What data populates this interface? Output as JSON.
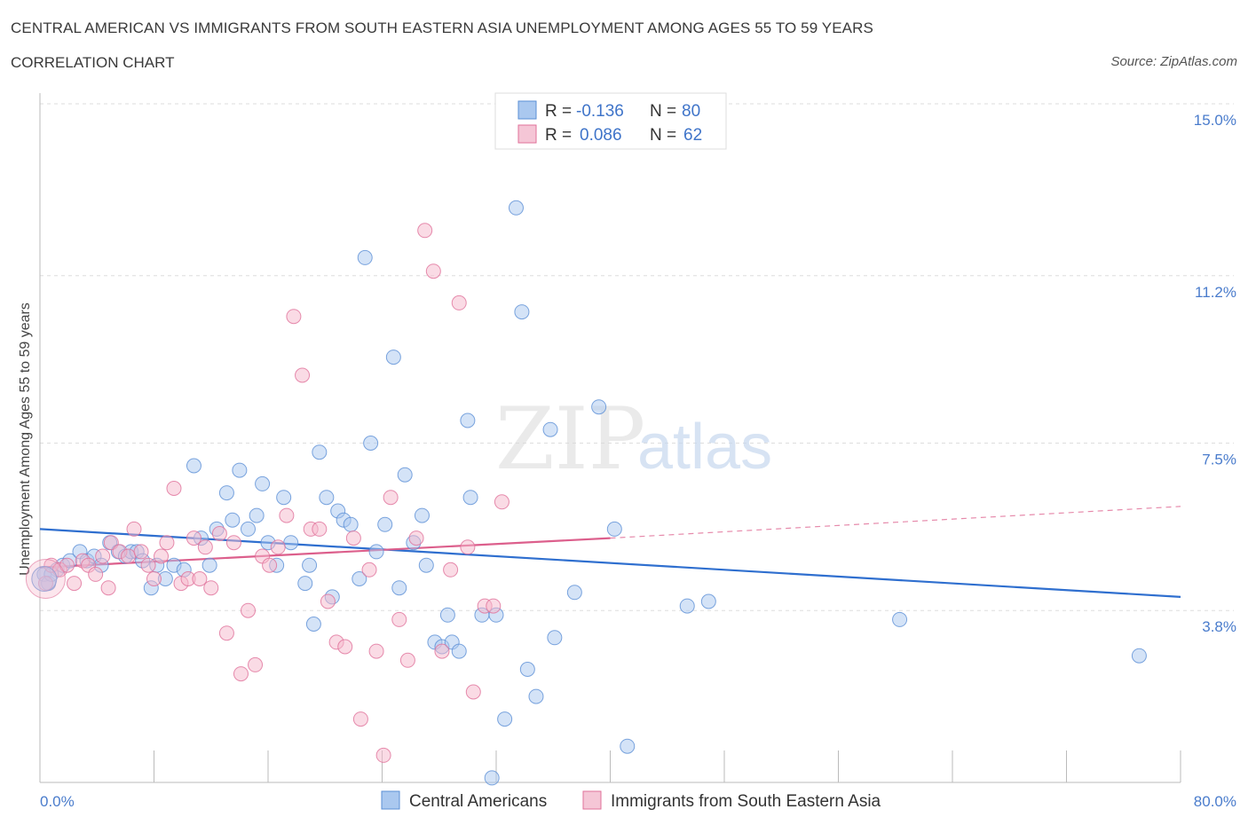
{
  "title": "CENTRAL AMERICAN VS IMMIGRANTS FROM SOUTH EASTERN ASIA UNEMPLOYMENT AMONG AGES 55 TO 59 YEARS",
  "subtitle": "CORRELATION CHART",
  "source": "Source: ZipAtlas.com",
  "watermark": {
    "zip": "ZIP",
    "atlas": "atlas"
  },
  "colors": {
    "blue": "#5b8fd6",
    "blue_fill": "#aac8ef",
    "pink": "#e0719a",
    "pink_fill": "#f5b8cc",
    "tick_label": "#4a7ccc"
  },
  "legend": {
    "row1": {
      "r_label": "R = ",
      "r_value": "-0.136",
      "n_label": "N = ",
      "n_value": "80"
    },
    "row2": {
      "r_label": "R = ",
      "r_value": "0.086",
      "n_label": "N = ",
      "n_value": "62"
    }
  },
  "bottom_legend": {
    "series1": "Central Americans",
    "series2": "Immigrants from South Eastern Asia"
  },
  "chart_data": {
    "type": "scatter",
    "title": "CENTRAL AMERICAN VS IMMIGRANTS FROM SOUTH EASTERN ASIA UNEMPLOYMENT AMONG AGES 55 TO 59 YEARS",
    "xlabel": "",
    "ylabel": "Unemployment Among Ages 55 to 59 years",
    "xlim": [
      0,
      80
    ],
    "ylim": [
      0,
      15
    ],
    "x_tick_labels": [
      "0.0%",
      "80.0%"
    ],
    "y_ticks": [
      3.8,
      7.5,
      11.2,
      15.0
    ],
    "y_tick_labels": [
      "3.8%",
      "7.5%",
      "11.2%",
      "15.0%"
    ],
    "grid": "horizontal dashed",
    "legend_position": "top-center",
    "series": [
      {
        "name": "Central Americans",
        "color": "#5b8fd6",
        "trend": {
          "x": [
            0,
            80
          ],
          "y": [
            5.6,
            4.1
          ]
        },
        "points": [
          [
            0.3,
            4.6
          ],
          [
            0.6,
            4.4
          ],
          [
            1.2,
            4.7
          ],
          [
            1.6,
            4.8
          ],
          [
            2.1,
            4.9
          ],
          [
            2.8,
            5.1
          ],
          [
            3.3,
            4.9
          ],
          [
            3.8,
            5.0
          ],
          [
            4.3,
            4.8
          ],
          [
            4.9,
            5.3
          ],
          [
            5.5,
            5.1
          ],
          [
            6.0,
            5.0
          ],
          [
            6.4,
            5.1
          ],
          [
            6.8,
            5.1
          ],
          [
            7.2,
            4.9
          ],
          [
            7.8,
            4.3
          ],
          [
            8.2,
            4.8
          ],
          [
            8.8,
            4.5
          ],
          [
            9.4,
            4.8
          ],
          [
            10.1,
            4.7
          ],
          [
            10.8,
            7.0
          ],
          [
            11.3,
            5.4
          ],
          [
            11.9,
            4.8
          ],
          [
            12.4,
            5.6
          ],
          [
            13.1,
            6.4
          ],
          [
            13.5,
            5.8
          ],
          [
            14.0,
            6.9
          ],
          [
            14.6,
            5.6
          ],
          [
            15.2,
            5.9
          ],
          [
            15.6,
            6.6
          ],
          [
            16.0,
            5.3
          ],
          [
            16.6,
            4.8
          ],
          [
            17.1,
            6.3
          ],
          [
            17.6,
            5.3
          ],
          [
            18.6,
            4.4
          ],
          [
            18.9,
            4.8
          ],
          [
            19.2,
            3.5
          ],
          [
            19.6,
            7.3
          ],
          [
            20.1,
            6.3
          ],
          [
            20.5,
            4.1
          ],
          [
            20.9,
            6.0
          ],
          [
            21.3,
            5.8
          ],
          [
            21.8,
            5.7
          ],
          [
            22.4,
            4.5
          ],
          [
            22.8,
            11.6
          ],
          [
            23.2,
            7.5
          ],
          [
            23.6,
            5.1
          ],
          [
            24.2,
            5.7
          ],
          [
            24.8,
            9.4
          ],
          [
            25.2,
            4.3
          ],
          [
            25.6,
            6.8
          ],
          [
            26.2,
            5.3
          ],
          [
            26.8,
            5.9
          ],
          [
            27.1,
            4.8
          ],
          [
            27.7,
            3.1
          ],
          [
            28.2,
            3.0
          ],
          [
            28.6,
            3.7
          ],
          [
            28.9,
            3.1
          ],
          [
            29.4,
            2.9
          ],
          [
            30.0,
            8.0
          ],
          [
            30.2,
            6.3
          ],
          [
            31.0,
            3.7
          ],
          [
            31.7,
            0.1
          ],
          [
            32.0,
            3.7
          ],
          [
            32.6,
            1.4
          ],
          [
            33.4,
            12.7
          ],
          [
            33.8,
            10.4
          ],
          [
            34.2,
            2.5
          ],
          [
            34.8,
            1.9
          ],
          [
            35.8,
            7.8
          ],
          [
            36.1,
            3.2
          ],
          [
            37.5,
            4.2
          ],
          [
            39.2,
            8.3
          ],
          [
            40.3,
            5.6
          ],
          [
            41.2,
            0.8
          ],
          [
            45.4,
            3.9
          ],
          [
            46.9,
            4.0
          ],
          [
            60.3,
            3.6
          ],
          [
            77.1,
            2.8
          ],
          [
            0.8,
            4.6
          ]
        ]
      },
      {
        "name": "Immigrants from South Eastern Asia",
        "color": "#e0719a",
        "trend": {
          "x": [
            0,
            40
          ],
          "y": [
            4.75,
            5.4
          ],
          "dashed_extension": {
            "x": [
              40,
              80
            ],
            "y": [
              5.4,
              6.1
            ]
          }
        },
        "points": [
          [
            0.4,
            4.4
          ],
          [
            0.8,
            4.8
          ],
          [
            1.4,
            4.7
          ],
          [
            1.9,
            4.8
          ],
          [
            2.4,
            4.4
          ],
          [
            3.0,
            4.9
          ],
          [
            3.4,
            4.8
          ],
          [
            3.9,
            4.6
          ],
          [
            4.4,
            5.0
          ],
          [
            4.8,
            4.3
          ],
          [
            5.0,
            5.3
          ],
          [
            5.6,
            5.1
          ],
          [
            6.2,
            5.0
          ],
          [
            6.6,
            5.6
          ],
          [
            7.1,
            5.1
          ],
          [
            7.6,
            4.8
          ],
          [
            8.0,
            4.5
          ],
          [
            8.5,
            5.0
          ],
          [
            8.9,
            5.3
          ],
          [
            9.4,
            6.5
          ],
          [
            9.9,
            4.4
          ],
          [
            10.4,
            4.5
          ],
          [
            10.8,
            5.4
          ],
          [
            11.2,
            4.5
          ],
          [
            11.6,
            5.2
          ],
          [
            12.0,
            4.3
          ],
          [
            12.6,
            5.5
          ],
          [
            13.1,
            3.3
          ],
          [
            13.6,
            5.3
          ],
          [
            14.1,
            2.4
          ],
          [
            14.6,
            3.8
          ],
          [
            15.1,
            2.6
          ],
          [
            15.6,
            5.0
          ],
          [
            16.1,
            4.8
          ],
          [
            16.7,
            5.2
          ],
          [
            17.3,
            5.9
          ],
          [
            17.8,
            10.3
          ],
          [
            18.4,
            9.0
          ],
          [
            19.0,
            5.6
          ],
          [
            19.6,
            5.6
          ],
          [
            20.2,
            4.0
          ],
          [
            20.8,
            3.1
          ],
          [
            21.4,
            3.0
          ],
          [
            22.0,
            5.4
          ],
          [
            22.5,
            1.4
          ],
          [
            23.1,
            4.7
          ],
          [
            23.6,
            2.9
          ],
          [
            24.1,
            0.6
          ],
          [
            24.6,
            6.3
          ],
          [
            25.2,
            3.6
          ],
          [
            25.8,
            2.7
          ],
          [
            26.4,
            5.4
          ],
          [
            27.0,
            12.2
          ],
          [
            27.6,
            11.3
          ],
          [
            28.2,
            2.9
          ],
          [
            28.8,
            4.7
          ],
          [
            29.4,
            10.6
          ],
          [
            30.0,
            5.2
          ],
          [
            30.4,
            2.0
          ],
          [
            31.2,
            3.9
          ],
          [
            31.8,
            3.9
          ],
          [
            32.4,
            6.2
          ]
        ]
      }
    ]
  }
}
